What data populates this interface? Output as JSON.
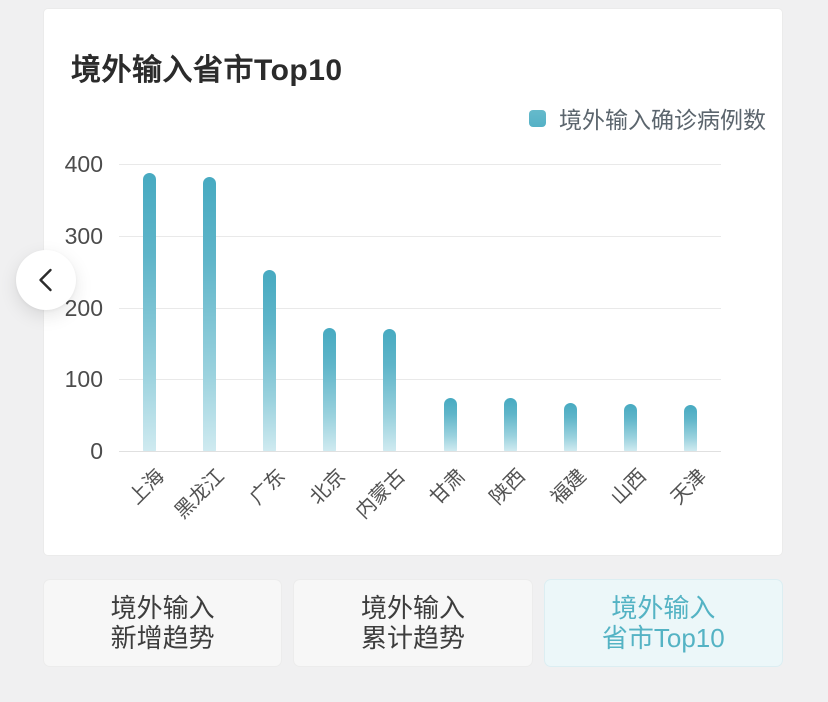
{
  "card": {
    "title": "境外输入省市Top10"
  },
  "chart_data": {
    "type": "bar",
    "title": "境外输入省市Top10",
    "series_name": "境外输入确诊病例数",
    "categories": [
      "上海",
      "黑龙江",
      "广东",
      "北京",
      "内蒙古",
      "甘肃",
      "陕西",
      "福建",
      "山西",
      "天津"
    ],
    "values": [
      388,
      382,
      252,
      172,
      170,
      74,
      74,
      67,
      66,
      64
    ],
    "xlabel": "",
    "ylabel": "",
    "ylim": [
      0,
      400
    ],
    "yticks": [
      0,
      100,
      200,
      300,
      400
    ],
    "grid": true,
    "legend_position": "top-right",
    "x_label_rotation": -45,
    "bar_colors": {
      "top": "#47aac1",
      "bottom": "#cfeaf0"
    }
  },
  "nav": {
    "prev_icon": "chevron-left"
  },
  "tabs": [
    {
      "line1": "境外输入",
      "line2": "新增趋势",
      "active": false
    },
    {
      "line1": "境外输入",
      "line2": "累计趋势",
      "active": false
    },
    {
      "line1": "境外输入",
      "line2": "省市Top10",
      "active": true
    }
  ],
  "colors": {
    "accent": "#54b3c4",
    "bar_top": "#47aac1",
    "bar_bottom": "#cfeaf0",
    "tab_active_bg": "#ecf7f9",
    "page_bg": "#f0f0f1",
    "grid_line": "#e9e9e9"
  }
}
